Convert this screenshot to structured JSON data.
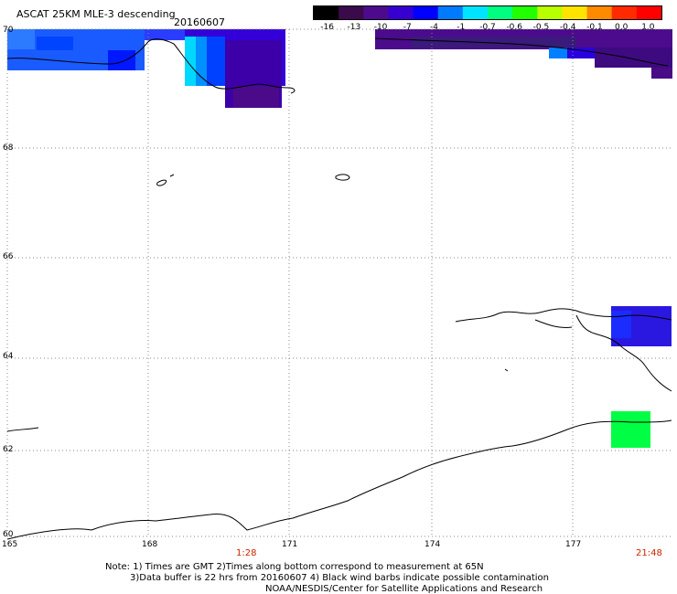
{
  "title": {
    "product": "ASCAT 25KM MLE-3 descending",
    "date": "20160607"
  },
  "colorbar": {
    "labels": [
      "-16",
      "-13",
      "-10",
      "-7",
      "-4",
      "-1",
      "-0.7",
      "-0.6",
      "-0.5",
      "-0.4",
      "-0.1",
      "0.0",
      "1.0"
    ],
    "colors": [
      "#000000",
      "#3a0a4a",
      "#4b0b8c",
      "#3500d0",
      "#0000ff",
      "#007bff",
      "#00e5ff",
      "#00ff80",
      "#22ff00",
      "#b8ff00",
      "#ffe400",
      "#ff8a00",
      "#ff2a00",
      "#ff0000"
    ]
  },
  "axes": {
    "lon_labels": [
      "165",
      "168",
      "171",
      "174",
      "177"
    ],
    "lat_labels": [
      "70",
      "68",
      "66",
      "64",
      "62",
      "60"
    ]
  },
  "times": {
    "left": "1:28",
    "right": "21:48"
  },
  "notes": {
    "line1": "Note: 1) Times are GMT 2)Times along bottom correspond to measurement at 65N",
    "line2": "3)Data buffer is 22 hrs from 20160607 4) Black wind barbs indicate possible contamination",
    "line3": "NOAA/NESDIS/Center for Satellite Applications and Research"
  }
}
